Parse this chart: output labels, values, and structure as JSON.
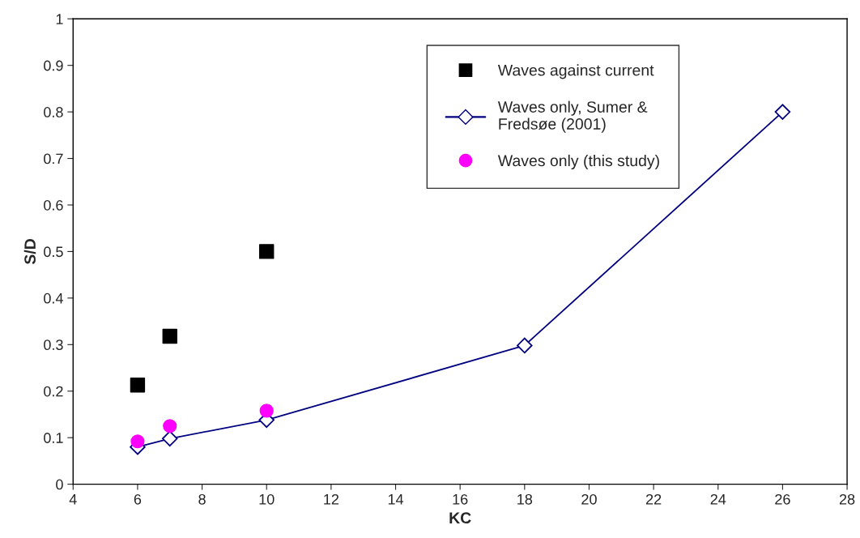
{
  "chart_data": {
    "type": "scatter",
    "xlabel": "KC",
    "ylabel": "S/D",
    "xlim": [
      4,
      28
    ],
    "xticks": [
      4,
      6,
      8,
      10,
      12,
      14,
      16,
      18,
      20,
      22,
      24,
      26,
      28
    ],
    "ylim": [
      0,
      1
    ],
    "yticks": [
      0,
      0.1,
      0.2,
      0.3,
      0.4,
      0.5,
      0.6,
      0.7,
      0.8,
      0.9,
      1
    ],
    "grid": false,
    "legend": "top",
    "series": [
      {
        "name": "Waves against current",
        "marker": "square",
        "color": "#000000",
        "x": [
          6,
          7,
          10
        ],
        "values": [
          0.213,
          0.318,
          0.5
        ]
      },
      {
        "name": "Waves only, Sumer &\nFredsøe (2001)",
        "type": "line",
        "marker": "diamond",
        "line_style": "solid",
        "color": "#000080",
        "x": [
          6,
          7,
          10,
          18,
          26
        ],
        "values": [
          0.08,
          0.098,
          0.138,
          0.298,
          0.8
        ]
      },
      {
        "name": "Waves only (this study)",
        "marker": "circle",
        "color": "#ff00ff",
        "x": [
          6,
          7,
          10
        ],
        "values": [
          0.092,
          0.125,
          0.158
        ]
      }
    ]
  }
}
